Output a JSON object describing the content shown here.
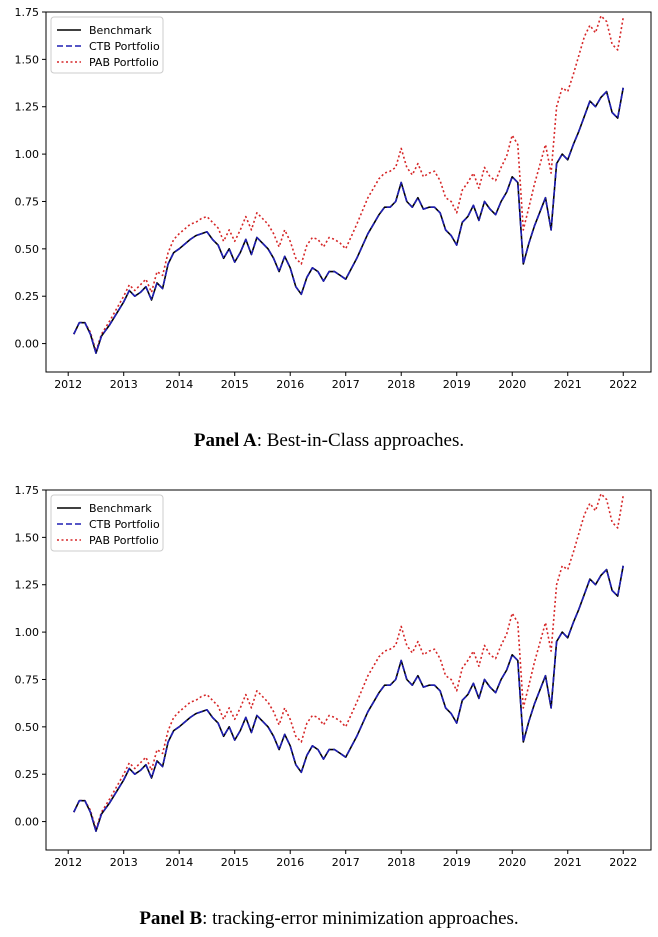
{
  "chart_data": [
    {
      "type": "line",
      "panel_label": "Panel A",
      "caption": ": Best-in-Class approaches.",
      "xlim": [
        2011.6,
        2022.5
      ],
      "ylim": [
        -0.15,
        1.75
      ],
      "xticks": [
        "2012",
        "2013",
        "2014",
        "2015",
        "2016",
        "2017",
        "2018",
        "2019",
        "2020",
        "2021",
        "2022"
      ],
      "yticks": [
        "0.00",
        "0.25",
        "0.50",
        "0.75",
        "1.00",
        "1.25",
        "1.50",
        "1.75"
      ],
      "legend": [
        "Benchmark",
        "CTB Portfolio",
        "PAB Portfolio"
      ],
      "legend_position": "upper-left",
      "x": [
        2012.1,
        2012.2,
        2012.3,
        2012.4,
        2012.5,
        2012.6,
        2012.75,
        2013.0,
        2013.1,
        2013.2,
        2013.3,
        2013.4,
        2013.5,
        2013.6,
        2013.7,
        2013.8,
        2013.9,
        2014.0,
        2014.2,
        2014.3,
        2014.4,
        2014.5,
        2014.6,
        2014.7,
        2014.8,
        2014.9,
        2015.0,
        2015.1,
        2015.2,
        2015.3,
        2015.4,
        2015.5,
        2015.6,
        2015.7,
        2015.8,
        2015.9,
        2016.0,
        2016.1,
        2016.2,
        2016.3,
        2016.4,
        2016.5,
        2016.6,
        2016.7,
        2016.8,
        2016.9,
        2017.0,
        2017.2,
        2017.4,
        2017.5,
        2017.6,
        2017.7,
        2017.8,
        2017.9,
        2018.0,
        2018.1,
        2018.2,
        2018.3,
        2018.4,
        2018.5,
        2018.6,
        2018.7,
        2018.8,
        2018.9,
        2019.0,
        2019.1,
        2019.2,
        2019.3,
        2019.4,
        2019.5,
        2019.6,
        2019.7,
        2019.8,
        2019.9,
        2020.0,
        2020.1,
        2020.2,
        2020.3,
        2020.4,
        2020.6,
        2020.7,
        2020.8,
        2020.9,
        2021.0,
        2021.1,
        2021.2,
        2021.3,
        2021.4,
        2021.5,
        2021.6,
        2021.7,
        2021.8,
        2021.9,
        2022.0
      ],
      "series": [
        {
          "name": "Benchmark",
          "color": "#000000",
          "dash": "solid",
          "values": [
            0.05,
            0.11,
            0.11,
            0.05,
            -0.05,
            0.04,
            0.1,
            0.22,
            0.28,
            0.25,
            0.27,
            0.3,
            0.23,
            0.32,
            0.29,
            0.42,
            0.48,
            0.5,
            0.55,
            0.57,
            0.58,
            0.59,
            0.55,
            0.52,
            0.45,
            0.5,
            0.43,
            0.48,
            0.55,
            0.47,
            0.56,
            0.53,
            0.5,
            0.45,
            0.38,
            0.46,
            0.4,
            0.3,
            0.26,
            0.35,
            0.4,
            0.38,
            0.33,
            0.38,
            0.38,
            0.36,
            0.34,
            0.45,
            0.58,
            0.63,
            0.68,
            0.72,
            0.72,
            0.75,
            0.85,
            0.75,
            0.72,
            0.77,
            0.71,
            0.72,
            0.72,
            0.69,
            0.6,
            0.57,
            0.52,
            0.64,
            0.67,
            0.73,
            0.65,
            0.75,
            0.71,
            0.68,
            0.75,
            0.8,
            0.88,
            0.85,
            0.42,
            0.53,
            0.62,
            0.77,
            0.6,
            0.95,
            1.0,
            0.97,
            1.05,
            1.12,
            1.2,
            1.28,
            1.25,
            1.3,
            1.33,
            1.22,
            1.19,
            1.35
          ]
        },
        {
          "name": "CTB Portfolio",
          "color": "#1f1fb4",
          "dash": "dashed",
          "values": [
            0.05,
            0.11,
            0.11,
            0.05,
            -0.05,
            0.04,
            0.1,
            0.22,
            0.28,
            0.25,
            0.27,
            0.3,
            0.23,
            0.32,
            0.29,
            0.42,
            0.48,
            0.5,
            0.55,
            0.57,
            0.58,
            0.59,
            0.55,
            0.52,
            0.45,
            0.5,
            0.43,
            0.48,
            0.55,
            0.47,
            0.56,
            0.53,
            0.5,
            0.45,
            0.38,
            0.46,
            0.4,
            0.3,
            0.26,
            0.35,
            0.4,
            0.38,
            0.33,
            0.38,
            0.38,
            0.36,
            0.34,
            0.45,
            0.58,
            0.63,
            0.68,
            0.72,
            0.72,
            0.75,
            0.85,
            0.75,
            0.72,
            0.77,
            0.71,
            0.72,
            0.72,
            0.69,
            0.6,
            0.57,
            0.52,
            0.64,
            0.67,
            0.73,
            0.65,
            0.75,
            0.71,
            0.68,
            0.75,
            0.8,
            0.88,
            0.85,
            0.42,
            0.53,
            0.62,
            0.77,
            0.6,
            0.95,
            1.0,
            0.97,
            1.05,
            1.12,
            1.2,
            1.28,
            1.25,
            1.3,
            1.33,
            1.22,
            1.19,
            1.35
          ]
        },
        {
          "name": "PAB Portfolio",
          "color": "#d62728",
          "dash": "dotted",
          "values": [
            0.05,
            0.11,
            0.11,
            0.06,
            -0.04,
            0.05,
            0.12,
            0.25,
            0.31,
            0.28,
            0.31,
            0.34,
            0.27,
            0.38,
            0.36,
            0.48,
            0.55,
            0.58,
            0.63,
            0.64,
            0.66,
            0.67,
            0.64,
            0.61,
            0.54,
            0.6,
            0.54,
            0.6,
            0.67,
            0.6,
            0.69,
            0.66,
            0.63,
            0.58,
            0.51,
            0.6,
            0.54,
            0.45,
            0.42,
            0.52,
            0.56,
            0.55,
            0.51,
            0.56,
            0.55,
            0.53,
            0.5,
            0.63,
            0.77,
            0.82,
            0.87,
            0.9,
            0.91,
            0.93,
            1.03,
            0.93,
            0.89,
            0.95,
            0.88,
            0.9,
            0.91,
            0.86,
            0.77,
            0.75,
            0.69,
            0.81,
            0.85,
            0.9,
            0.82,
            0.93,
            0.88,
            0.86,
            0.93,
            0.99,
            1.1,
            1.05,
            0.6,
            0.72,
            0.84,
            1.05,
            0.9,
            1.25,
            1.35,
            1.33,
            1.42,
            1.52,
            1.62,
            1.68,
            1.64,
            1.73,
            1.7,
            1.58,
            1.55,
            1.72
          ]
        }
      ]
    },
    {
      "type": "line",
      "panel_label": "Panel B",
      "caption": ": tracking-error minimization approaches.",
      "xlim": [
        2011.6,
        2022.5
      ],
      "ylim": [
        -0.15,
        1.75
      ],
      "xticks": [
        "2012",
        "2013",
        "2014",
        "2015",
        "2016",
        "2017",
        "2018",
        "2019",
        "2020",
        "2021",
        "2022"
      ],
      "yticks": [
        "0.00",
        "0.25",
        "0.50",
        "0.75",
        "1.00",
        "1.25",
        "1.50",
        "1.75"
      ],
      "legend": [
        "Benchmark",
        "CTB Portfolio",
        "PAB Portfolio"
      ],
      "legend_position": "upper-left",
      "x": [
        2012.1,
        2012.2,
        2012.3,
        2012.4,
        2012.5,
        2012.6,
        2012.75,
        2013.0,
        2013.1,
        2013.2,
        2013.3,
        2013.4,
        2013.5,
        2013.6,
        2013.7,
        2013.8,
        2013.9,
        2014.0,
        2014.2,
        2014.3,
        2014.4,
        2014.5,
        2014.6,
        2014.7,
        2014.8,
        2014.9,
        2015.0,
        2015.1,
        2015.2,
        2015.3,
        2015.4,
        2015.5,
        2015.6,
        2015.7,
        2015.8,
        2015.9,
        2016.0,
        2016.1,
        2016.2,
        2016.3,
        2016.4,
        2016.5,
        2016.6,
        2016.7,
        2016.8,
        2016.9,
        2017.0,
        2017.2,
        2017.4,
        2017.5,
        2017.6,
        2017.7,
        2017.8,
        2017.9,
        2018.0,
        2018.1,
        2018.2,
        2018.3,
        2018.4,
        2018.5,
        2018.6,
        2018.7,
        2018.8,
        2018.9,
        2019.0,
        2019.1,
        2019.2,
        2019.3,
        2019.4,
        2019.5,
        2019.6,
        2019.7,
        2019.8,
        2019.9,
        2020.0,
        2020.1,
        2020.2,
        2020.3,
        2020.4,
        2020.6,
        2020.7,
        2020.8,
        2020.9,
        2021.0,
        2021.1,
        2021.2,
        2021.3,
        2021.4,
        2021.5,
        2021.6,
        2021.7,
        2021.8,
        2021.9,
        2022.0
      ],
      "series": [
        {
          "name": "Benchmark",
          "color": "#000000",
          "dash": "solid",
          "values": [
            0.05,
            0.11,
            0.11,
            0.05,
            -0.05,
            0.04,
            0.1,
            0.22,
            0.28,
            0.25,
            0.27,
            0.3,
            0.23,
            0.32,
            0.29,
            0.42,
            0.48,
            0.5,
            0.55,
            0.57,
            0.58,
            0.59,
            0.55,
            0.52,
            0.45,
            0.5,
            0.43,
            0.48,
            0.55,
            0.47,
            0.56,
            0.53,
            0.5,
            0.45,
            0.38,
            0.46,
            0.4,
            0.3,
            0.26,
            0.35,
            0.4,
            0.38,
            0.33,
            0.38,
            0.38,
            0.36,
            0.34,
            0.45,
            0.58,
            0.63,
            0.68,
            0.72,
            0.72,
            0.75,
            0.85,
            0.75,
            0.72,
            0.77,
            0.71,
            0.72,
            0.72,
            0.69,
            0.6,
            0.57,
            0.52,
            0.64,
            0.67,
            0.73,
            0.65,
            0.75,
            0.71,
            0.68,
            0.75,
            0.8,
            0.88,
            0.85,
            0.42,
            0.53,
            0.62,
            0.77,
            0.6,
            0.95,
            1.0,
            0.97,
            1.05,
            1.12,
            1.2,
            1.28,
            1.25,
            1.3,
            1.33,
            1.22,
            1.19,
            1.35
          ]
        },
        {
          "name": "CTB Portfolio",
          "color": "#1f1fb4",
          "dash": "dashed",
          "values": [
            0.05,
            0.11,
            0.11,
            0.05,
            -0.05,
            0.04,
            0.1,
            0.22,
            0.28,
            0.25,
            0.27,
            0.3,
            0.23,
            0.32,
            0.29,
            0.42,
            0.48,
            0.5,
            0.55,
            0.57,
            0.58,
            0.59,
            0.55,
            0.52,
            0.45,
            0.5,
            0.43,
            0.48,
            0.55,
            0.47,
            0.56,
            0.53,
            0.5,
            0.45,
            0.38,
            0.46,
            0.4,
            0.3,
            0.26,
            0.35,
            0.4,
            0.38,
            0.33,
            0.38,
            0.38,
            0.36,
            0.34,
            0.45,
            0.58,
            0.63,
            0.68,
            0.72,
            0.72,
            0.75,
            0.85,
            0.75,
            0.72,
            0.77,
            0.71,
            0.72,
            0.72,
            0.69,
            0.6,
            0.57,
            0.52,
            0.64,
            0.67,
            0.73,
            0.65,
            0.75,
            0.71,
            0.68,
            0.75,
            0.8,
            0.88,
            0.85,
            0.42,
            0.53,
            0.62,
            0.77,
            0.6,
            0.95,
            1.0,
            0.97,
            1.05,
            1.12,
            1.2,
            1.28,
            1.25,
            1.3,
            1.33,
            1.22,
            1.19,
            1.35
          ]
        },
        {
          "name": "PAB Portfolio",
          "color": "#d62728",
          "dash": "dotted",
          "values": [
            0.05,
            0.11,
            0.11,
            0.06,
            -0.04,
            0.05,
            0.12,
            0.25,
            0.31,
            0.28,
            0.31,
            0.34,
            0.27,
            0.38,
            0.36,
            0.48,
            0.55,
            0.58,
            0.63,
            0.64,
            0.66,
            0.67,
            0.64,
            0.61,
            0.54,
            0.6,
            0.54,
            0.6,
            0.67,
            0.6,
            0.69,
            0.66,
            0.63,
            0.58,
            0.51,
            0.6,
            0.54,
            0.45,
            0.42,
            0.52,
            0.56,
            0.55,
            0.51,
            0.56,
            0.55,
            0.53,
            0.5,
            0.63,
            0.77,
            0.82,
            0.87,
            0.9,
            0.91,
            0.93,
            1.03,
            0.93,
            0.89,
            0.95,
            0.88,
            0.9,
            0.91,
            0.86,
            0.77,
            0.75,
            0.69,
            0.81,
            0.85,
            0.9,
            0.82,
            0.93,
            0.88,
            0.86,
            0.93,
            0.99,
            1.1,
            1.05,
            0.6,
            0.72,
            0.84,
            1.05,
            0.9,
            1.25,
            1.35,
            1.33,
            1.42,
            1.52,
            1.62,
            1.68,
            1.64,
            1.73,
            1.7,
            1.58,
            1.55,
            1.72
          ]
        }
      ]
    }
  ]
}
